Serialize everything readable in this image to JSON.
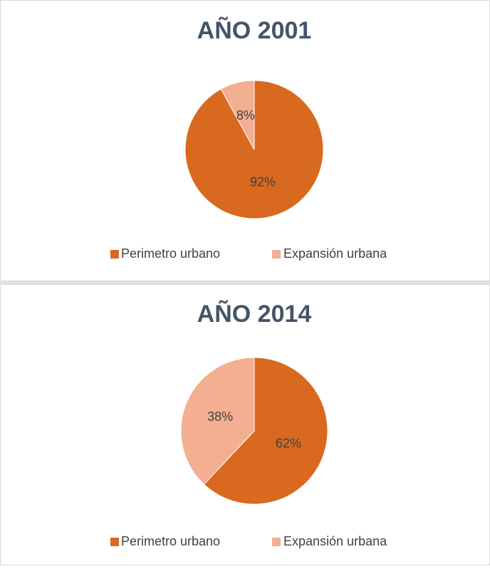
{
  "chart_data": [
    {
      "type": "pie",
      "title": "AÑO 2001",
      "categories": [
        "Perimetro urbano",
        "Expansión urbana"
      ],
      "values": [
        92,
        8
      ],
      "value_labels": [
        "92%",
        "8%"
      ],
      "colors": [
        "#d8691f",
        "#f4ae92"
      ]
    },
    {
      "type": "pie",
      "title": "AÑO 2014",
      "categories": [
        "Perimetro urbano",
        "Expansión urbana"
      ],
      "values": [
        62,
        38
      ],
      "value_labels": [
        "62%",
        "38%"
      ],
      "colors": [
        "#d8691f",
        "#f4ae92"
      ]
    }
  ]
}
